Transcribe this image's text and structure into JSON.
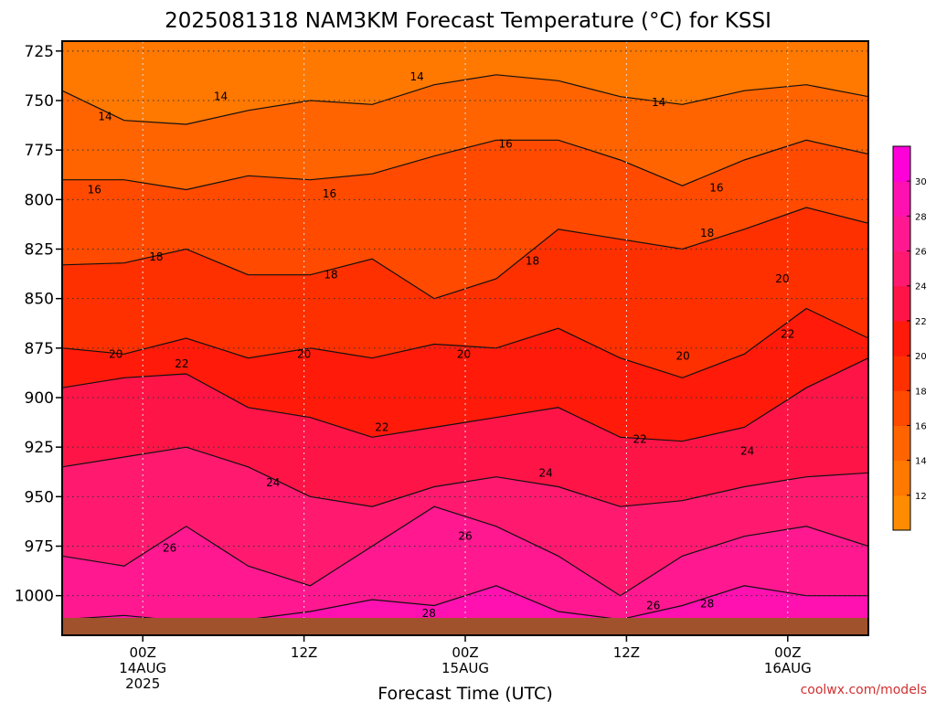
{
  "chart_data": {
    "type": "heatmap",
    "title": "2025081318 NAM3KM Forecast Temperature (°C) for KSSI",
    "xlabel": "Forecast Time (UTC)",
    "ylabel": "",
    "y_scale": "pressure (hPa), decreasing upward",
    "ylim": [
      1020,
      720
    ],
    "y_ticks": [
      "725",
      "750",
      "775",
      "800",
      "825",
      "850",
      "875",
      "900",
      "925",
      "950",
      "975",
      "1000"
    ],
    "x_ticks": [
      {
        "label": "00Z",
        "sub1": "14AUG",
        "sub2": "2025",
        "hour": 6
      },
      {
        "label": "12Z",
        "sub1": "",
        "sub2": "",
        "hour": 18
      },
      {
        "label": "00Z",
        "sub1": "15AUG",
        "sub2": "",
        "hour": 30
      },
      {
        "label": "12Z",
        "sub1": "",
        "sub2": "",
        "hour": 42
      },
      {
        "label": "00Z",
        "sub1": "16AUG",
        "sub2": "",
        "hour": 54
      }
    ],
    "grid": true,
    "colorbar": {
      "levels": [
        10,
        12,
        14,
        16,
        18,
        20,
        22,
        24,
        26,
        28,
        30,
        32
      ],
      "tick_labels": [
        "12",
        "14",
        "16",
        "18",
        "20",
        "22",
        "24",
        "26",
        "28",
        "30"
      ],
      "colors": [
        "#ff8c00",
        "#ff7800",
        "#ff6400",
        "#ff4a00",
        "#ff3000",
        "#ff1a0a",
        "#ff1448",
        "#ff1a70",
        "#ff1890",
        "#ff10b0",
        "#ff00d8"
      ]
    },
    "contour_lines": [
      {
        "value": 14,
        "pressure_profile": [
          745,
          760,
          762,
          755,
          750,
          752,
          742,
          737,
          740,
          748,
          752,
          745,
          742,
          748
        ]
      },
      {
        "value": 16,
        "pressure_profile": [
          790,
          790,
          795,
          788,
          790,
          787,
          778,
          770,
          770,
          780,
          793,
          780,
          770,
          777
        ]
      },
      {
        "value": 18,
        "pressure_profile": [
          833,
          832,
          825,
          838,
          838,
          830,
          850,
          840,
          815,
          820,
          825,
          815,
          804,
          812
        ]
      },
      {
        "value": 20,
        "pressure_profile": [
          875,
          878,
          870,
          880,
          875,
          880,
          873,
          875,
          865,
          880,
          890,
          878,
          855,
          870
        ]
      },
      {
        "value": 22,
        "pressure_profile": [
          895,
          890,
          888,
          905,
          910,
          920,
          915,
          910,
          905,
          920,
          922,
          915,
          895,
          880
        ]
      },
      {
        "value": 24,
        "pressure_profile": [
          935,
          930,
          925,
          935,
          950,
          955,
          945,
          940,
          945,
          955,
          952,
          945,
          940,
          938
        ]
      },
      {
        "value": 26,
        "pressure_profile": [
          980,
          985,
          965,
          985,
          995,
          975,
          955,
          965,
          980,
          1000,
          980,
          970,
          965,
          975
        ]
      },
      {
        "value": 28,
        "pressure_profile": [
          1012,
          1010,
          1013,
          1012,
          1008,
          1002,
          1005,
          995,
          1008,
          1012,
          1005,
          995,
          1000,
          1000
        ]
      }
    ],
    "contour_labels": [
      {
        "text": "14",
        "hour": 3.2,
        "p": 758
      },
      {
        "text": "14",
        "hour": 11.8,
        "p": 748
      },
      {
        "text": "14",
        "hour": 26.4,
        "p": 738
      },
      {
        "text": "14",
        "hour": 44.4,
        "p": 751
      },
      {
        "text": "16",
        "hour": 2.4,
        "p": 795
      },
      {
        "text": "16",
        "hour": 19.9,
        "p": 797
      },
      {
        "text": "16",
        "hour": 33.0,
        "p": 772
      },
      {
        "text": "16",
        "hour": 48.7,
        "p": 794
      },
      {
        "text": "18",
        "hour": 7.0,
        "p": 829
      },
      {
        "text": "18",
        "hour": 20.0,
        "p": 838
      },
      {
        "text": "18",
        "hour": 35.0,
        "p": 831
      },
      {
        "text": "18",
        "hour": 48.0,
        "p": 817
      },
      {
        "text": "20",
        "hour": 4.0,
        "p": 878
      },
      {
        "text": "20",
        "hour": 18.0,
        "p": 878
      },
      {
        "text": "20",
        "hour": 29.9,
        "p": 878
      },
      {
        "text": "20",
        "hour": 46.2,
        "p": 879
      },
      {
        "text": "20",
        "hour": 53.6,
        "p": 840
      },
      {
        "text": "22",
        "hour": 8.9,
        "p": 883
      },
      {
        "text": "22",
        "hour": 23.8,
        "p": 915
      },
      {
        "text": "22",
        "hour": 43.0,
        "p": 921
      },
      {
        "text": "22",
        "hour": 54.0,
        "p": 868
      },
      {
        "text": "24",
        "hour": 15.7,
        "p": 943
      },
      {
        "text": "24",
        "hour": 36.0,
        "p": 938
      },
      {
        "text": "24",
        "hour": 51.0,
        "p": 927
      },
      {
        "text": "26",
        "hour": 8.0,
        "p": 976
      },
      {
        "text": "26",
        "hour": 30.0,
        "p": 970
      },
      {
        "text": "26",
        "hour": 44.0,
        "p": 1005
      },
      {
        "text": "28",
        "hour": 27.3,
        "p": 1009
      },
      {
        "text": "28",
        "hour": 48.0,
        "p": 1004
      }
    ],
    "terrain_color": "#a0522d"
  },
  "credit": "coolwx.com/models"
}
